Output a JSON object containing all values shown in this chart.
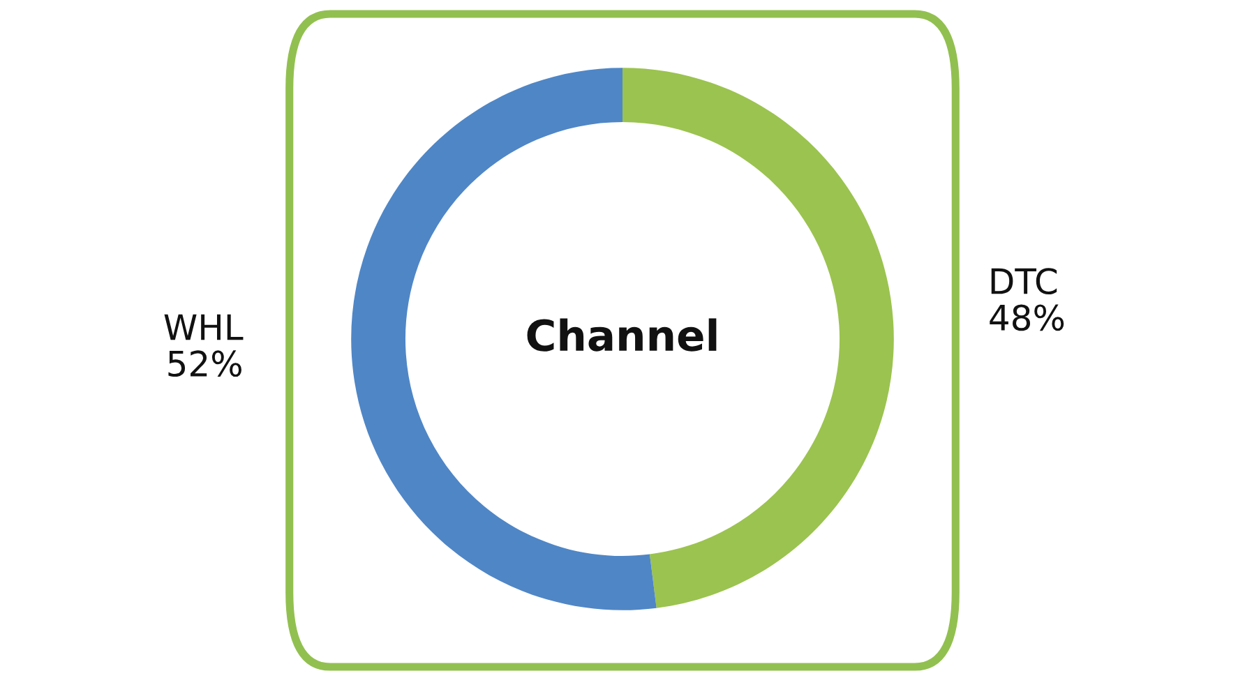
{
  "chart_data": {
    "type": "donut",
    "title": "Channel",
    "categories": [
      "DTC",
      "WHL"
    ],
    "values": [
      48,
      52
    ],
    "colors": [
      "#9bc34f",
      "#4f86c6"
    ],
    "value_labels": [
      "48%",
      "52%"
    ]
  }
}
